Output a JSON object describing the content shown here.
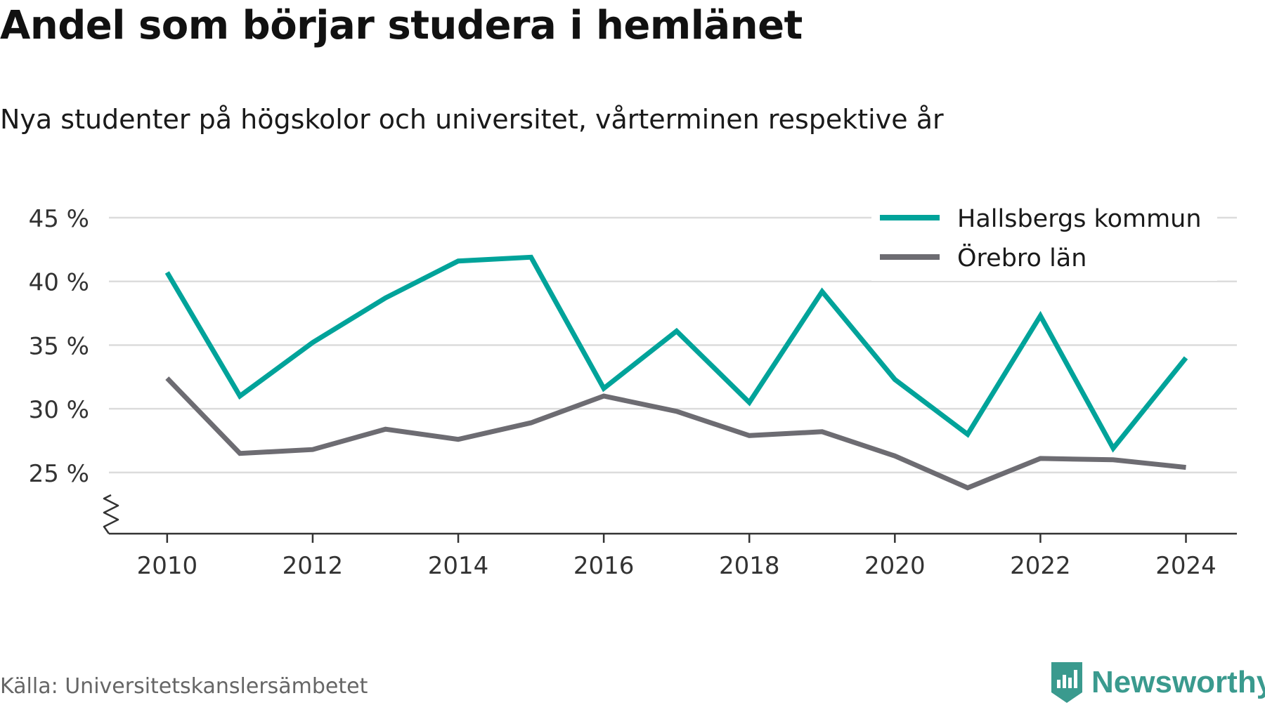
{
  "header": {
    "title": "Andel som börjar studera i hemlänet",
    "subtitle": "Nya studenter på högskolor och universitet, vårterminen respektive år"
  },
  "footer": {
    "source": "Källa: Universitetskanslersämbetet",
    "brand": "Newsworthy"
  },
  "colors": {
    "teal": "#00a39a",
    "gray": "#6d6c72",
    "grid": "#dcdcdc",
    "axis": "#333333",
    "brand": "#3a9a8e"
  },
  "chart_data": {
    "type": "line",
    "x": [
      2010,
      2011,
      2012,
      2013,
      2014,
      2015,
      2016,
      2017,
      2018,
      2019,
      2020,
      2021,
      2022,
      2023,
      2024
    ],
    "series": [
      {
        "name": "Hallsbergs kommun",
        "color": "#00a39a",
        "values": [
          40.7,
          31.0,
          35.2,
          38.7,
          41.6,
          41.9,
          31.6,
          36.1,
          30.5,
          39.2,
          32.3,
          28.0,
          37.3,
          26.9,
          34.0
        ]
      },
      {
        "name": "Örebro län",
        "color": "#6d6c72",
        "values": [
          32.4,
          26.5,
          26.8,
          28.4,
          27.6,
          28.9,
          31.0,
          29.8,
          27.9,
          28.2,
          26.3,
          23.8,
          26.1,
          26.0,
          25.4
        ]
      }
    ],
    "yticks": [
      25,
      30,
      35,
      40,
      45
    ],
    "ytick_labels": [
      "25 %",
      "30 %",
      "35 %",
      "40 %",
      "45 %"
    ],
    "xticks": [
      2010,
      2012,
      2014,
      2016,
      2018,
      2020,
      2022,
      2024
    ],
    "xtick_labels": [
      "2010",
      "2012",
      "2014",
      "2016",
      "2018",
      "2020",
      "2022",
      "2024"
    ],
    "ylim": [
      20.2,
      45
    ],
    "xlim": [
      2009.2,
      2024.7
    ],
    "axis_break": true,
    "grid": true,
    "legend_position": "top-right"
  }
}
